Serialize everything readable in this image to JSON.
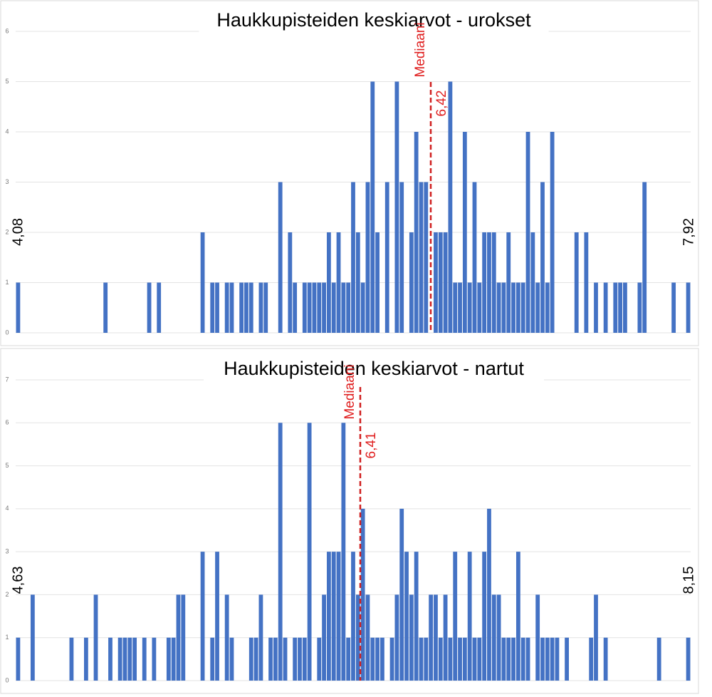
{
  "chart_data": [
    {
      "type": "bar",
      "title": "Haukkupisteiden keskiarvot - urokset",
      "color": "#4472c4",
      "grid": true,
      "ylim": [
        0,
        6
      ],
      "yticks": [
        0,
        1,
        2,
        3,
        4,
        5,
        6
      ],
      "annotations": {
        "median_label": "Mediaani",
        "median_value": "6,42",
        "min": "4,08",
        "max": "7,92"
      },
      "categories": [
        null,
        null,
        null,
        null,
        null,
        null,
        null,
        null,
        null,
        null,
        null,
        null,
        null,
        null,
        null,
        null,
        null,
        null,
        null,
        null,
        null,
        null,
        null,
        null,
        null,
        null,
        null,
        null,
        null,
        null,
        null,
        null,
        null,
        null,
        null,
        null,
        null,
        null,
        null,
        null,
        null,
        null,
        null,
        null,
        null,
        null,
        null,
        null,
        null,
        null,
        null,
        null,
        null,
        null,
        null,
        null,
        null,
        null,
        null,
        null,
        null,
        null,
        null,
        null,
        null,
        null,
        null,
        null,
        null,
        null,
        null,
        null,
        null,
        null,
        null,
        null,
        null,
        null,
        null,
        null,
        null,
        null,
        null,
        null,
        null,
        null,
        null,
        null,
        null,
        null,
        null,
        null,
        null,
        null,
        null,
        null,
        null,
        null,
        null,
        null,
        null,
        null,
        null,
        null,
        null,
        null,
        null,
        null,
        null,
        null,
        null,
        null,
        null,
        null,
        null,
        null,
        null,
        null,
        null,
        null,
        null,
        null,
        null,
        null,
        null,
        null,
        null,
        null,
        null,
        null,
        null,
        null,
        null,
        null,
        null,
        null,
        null,
        null,
        null
      ],
      "values": [
        1,
        0,
        0,
        0,
        0,
        0,
        0,
        0,
        0,
        0,
        0,
        0,
        0,
        0,
        0,
        0,
        0,
        0,
        1,
        0,
        0,
        0,
        0,
        0,
        0,
        0,
        0,
        1,
        0,
        1,
        0,
        0,
        0,
        0,
        0,
        0,
        0,
        0,
        2,
        0,
        1,
        1,
        0,
        1,
        1,
        0,
        1,
        1,
        1,
        0,
        1,
        1,
        0,
        0,
        3,
        0,
        2,
        1,
        0,
        1,
        1,
        1,
        1,
        1,
        2,
        1,
        2,
        1,
        1,
        3,
        2,
        1,
        3,
        5,
        2,
        0,
        3,
        0,
        5,
        3,
        0,
        2,
        4,
        3,
        3,
        0,
        2,
        2,
        2,
        5,
        1,
        1,
        4,
        1,
        3,
        1,
        2,
        2,
        2,
        1,
        1,
        2,
        1,
        1,
        1,
        4,
        2,
        1,
        3,
        1,
        4,
        0,
        0,
        0,
        0,
        2,
        0,
        2,
        0,
        1,
        0,
        1,
        0,
        1,
        1,
        1,
        0,
        0,
        1,
        3,
        0,
        0,
        0,
        0,
        0,
        1,
        0,
        0,
        1
      ]
    },
    {
      "type": "bar",
      "title": "Haukkupisteiden keskiarvot - nartut",
      "color": "#4472c4",
      "grid": true,
      "ylim": [
        0,
        7
      ],
      "yticks": [
        0,
        1,
        2,
        3,
        4,
        5,
        6,
        7
      ],
      "annotations": {
        "median_label": "Mediaani",
        "median_value": "6,41",
        "min": "4,63",
        "max": "8,15"
      },
      "categories": [
        null,
        null,
        null,
        null,
        null,
        null,
        null,
        null,
        null,
        null,
        null,
        null,
        null,
        null,
        null,
        null,
        null,
        null,
        null,
        null,
        null,
        null,
        null,
        null,
        null,
        null,
        null,
        null,
        null,
        null,
        null,
        null,
        null,
        null,
        null,
        null,
        null,
        null,
        null,
        null,
        null,
        null,
        null,
        null,
        null,
        null,
        null,
        null,
        null,
        null,
        null,
        null,
        null,
        null,
        null,
        null,
        null,
        null,
        null,
        null,
        null,
        null,
        null,
        null,
        null,
        null,
        null,
        null,
        null,
        null,
        null,
        null,
        null,
        null,
        null,
        null,
        null,
        null,
        null,
        null,
        null,
        null,
        null,
        null,
        null,
        null,
        null,
        null,
        null,
        null,
        null,
        null,
        null,
        null,
        null,
        null,
        null,
        null,
        null,
        null,
        null,
        null,
        null,
        null,
        null,
        null,
        null,
        null,
        null,
        null,
        null,
        null,
        null,
        null,
        null,
        null,
        null,
        null,
        null,
        null,
        null,
        null,
        null,
        null,
        null,
        null,
        null,
        null,
        null,
        null,
        null,
        null,
        null,
        null,
        null,
        null,
        null,
        null,
        null
      ],
      "values": [
        1,
        0,
        0,
        2,
        0,
        0,
        0,
        0,
        0,
        0,
        0,
        1,
        0,
        0,
        1,
        0,
        2,
        0,
        0,
        1,
        0,
        1,
        1,
        1,
        1,
        0,
        1,
        0,
        1,
        0,
        0,
        1,
        1,
        2,
        2,
        0,
        0,
        0,
        3,
        0,
        1,
        3,
        0,
        2,
        1,
        0,
        0,
        0,
        1,
        1,
        2,
        0,
        1,
        1,
        6,
        1,
        0,
        1,
        1,
        1,
        6,
        0,
        1,
        2,
        3,
        3,
        3,
        6,
        1,
        3,
        2,
        4,
        2,
        1,
        1,
        1,
        0,
        1,
        2,
        4,
        3,
        2,
        3,
        1,
        1,
        2,
        2,
        1,
        2,
        1,
        3,
        1,
        1,
        3,
        1,
        1,
        3,
        4,
        2,
        2,
        1,
        1,
        1,
        3,
        1,
        1,
        0,
        2,
        1,
        1,
        1,
        1,
        0,
        1,
        0,
        0,
        0,
        0,
        1,
        2,
        0,
        1,
        0,
        0,
        0,
        0,
        0,
        0,
        0,
        0,
        0,
        0,
        1,
        0,
        0,
        0,
        0,
        0,
        1
      ]
    }
  ]
}
